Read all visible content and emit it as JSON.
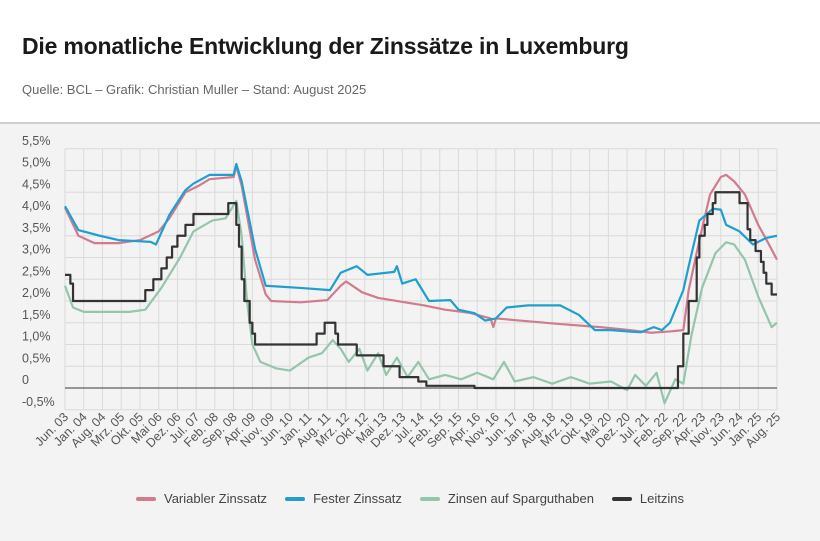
{
  "header": {
    "title": "Die monatliche Entwicklung der Zinssätze in Luxemburg",
    "subtitle": "Quelle: BCL – Grafik: Christian Muller – Stand: August 2025"
  },
  "chart_data": {
    "type": "line",
    "title": "Die monatliche Entwicklung der Zinssätze in Luxemburg",
    "xlabel": "",
    "ylabel": "",
    "ylim": [
      -0.5,
      5.5
    ],
    "xlim": [
      "2003-06",
      "2025-08"
    ],
    "grid": true,
    "legend_position": "bottom",
    "y_ticks": [
      {
        "value": 5.5,
        "label": "5,5%"
      },
      {
        "value": 5.0,
        "label": "5,0%"
      },
      {
        "value": 4.5,
        "label": "4,5%"
      },
      {
        "value": 4.0,
        "label": "4,0%"
      },
      {
        "value": 3.5,
        "label": "3,5%"
      },
      {
        "value": 3.0,
        "label": "3,0%"
      },
      {
        "value": 2.5,
        "label": "2,5%"
      },
      {
        "value": 2.0,
        "label": "2,0%"
      },
      {
        "value": 1.5,
        "label": "1,5%"
      },
      {
        "value": 1.0,
        "label": "1,0%"
      },
      {
        "value": 0.5,
        "label": "0,5%"
      },
      {
        "value": 0,
        "label": "0"
      },
      {
        "value": -0.5,
        "label": "-0,5%"
      }
    ],
    "x_ticks": [
      "Jun. 03",
      "Jan. 04",
      "Aug. 04",
      "Mrz. 05",
      "Okt. 05",
      "Mai 06",
      "Dez. 06",
      "Jul. 07",
      "Feb. 08",
      "Sep. 08",
      "Apr. 09",
      "Nov. 09",
      "Jun. 10",
      "Jan. 11",
      "Aug. 11",
      "Mrz. 12",
      "Okt. 12",
      "Mai 13",
      "Dez. 13",
      "Jul. 14",
      "Feb. 15",
      "Sep. 15",
      "Apr. 16",
      "Nov. 16",
      "Jun. 17",
      "Jan. 18",
      "Aug. 18",
      "Mrz. 19",
      "Okt. 19",
      "Mai 20",
      "Dez. 20",
      "Jul. 21",
      "Feb. 22",
      "Sep. 22",
      "Apr. 23",
      "Nov. 23",
      "Jun. 24",
      "Jan. 25",
      "Aug. 25"
    ],
    "series": [
      {
        "name": "Variabler Zinssatz",
        "color": "#d27b8f",
        "step": false,
        "points": [
          [
            "2003-06",
            4.15
          ],
          [
            "2003-11",
            3.5
          ],
          [
            "2004-05",
            3.33
          ],
          [
            "2005-02",
            3.33
          ],
          [
            "2005-10",
            3.4
          ],
          [
            "2006-05",
            3.6
          ],
          [
            "2006-09",
            3.9
          ],
          [
            "2007-03",
            4.5
          ],
          [
            "2007-08",
            4.65
          ],
          [
            "2007-12",
            4.8
          ],
          [
            "2008-09",
            4.85
          ],
          [
            "2008-10",
            5.1
          ],
          [
            "2008-12",
            4.65
          ],
          [
            "2009-05",
            2.95
          ],
          [
            "2009-09",
            2.15
          ],
          [
            "2009-11",
            2.0
          ],
          [
            "2010-10",
            1.97
          ],
          [
            "2011-08",
            2.02
          ],
          [
            "2012-01",
            2.35
          ],
          [
            "2012-03",
            2.45
          ],
          [
            "2012-09",
            2.2
          ],
          [
            "2013-03",
            2.07
          ],
          [
            "2014-01",
            1.97
          ],
          [
            "2014-08",
            1.9
          ],
          [
            "2015-04",
            1.8
          ],
          [
            "2016-01",
            1.73
          ],
          [
            "2016-09",
            1.6
          ],
          [
            "2016-10",
            1.4
          ],
          [
            "2016-11",
            1.6
          ],
          [
            "2017-08",
            1.55
          ],
          [
            "2018-11",
            1.47
          ],
          [
            "2020-02",
            1.4
          ],
          [
            "2021-01",
            1.33
          ],
          [
            "2021-09",
            1.27
          ],
          [
            "2022-04",
            1.3
          ],
          [
            "2022-09",
            1.33
          ],
          [
            "2022-11",
            2.25
          ],
          [
            "2023-03",
            3.4
          ],
          [
            "2023-07",
            4.45
          ],
          [
            "2023-11",
            4.85
          ],
          [
            "2024-01",
            4.9
          ],
          [
            "2024-04",
            4.75
          ],
          [
            "2024-08",
            4.45
          ],
          [
            "2025-01",
            3.75
          ],
          [
            "2025-05",
            3.3
          ],
          [
            "2025-08",
            2.95
          ]
        ]
      },
      {
        "name": "Fester Zinssatz",
        "color": "#1f9fd0",
        "step": false,
        "points": [
          [
            "2003-06",
            4.18
          ],
          [
            "2003-11",
            3.63
          ],
          [
            "2004-07",
            3.5
          ],
          [
            "2005-02",
            3.4
          ],
          [
            "2006-02",
            3.36
          ],
          [
            "2006-04",
            3.3
          ],
          [
            "2006-09",
            3.98
          ],
          [
            "2007-03",
            4.55
          ],
          [
            "2007-06",
            4.7
          ],
          [
            "2007-12",
            4.9
          ],
          [
            "2008-09",
            4.9
          ],
          [
            "2008-10",
            5.15
          ],
          [
            "2008-12",
            4.75
          ],
          [
            "2009-05",
            3.2
          ],
          [
            "2009-09",
            2.35
          ],
          [
            "2010-10",
            2.3
          ],
          [
            "2011-09",
            2.25
          ],
          [
            "2012-01",
            2.65
          ],
          [
            "2012-07",
            2.8
          ],
          [
            "2012-11",
            2.6
          ],
          [
            "2013-09",
            2.67
          ],
          [
            "2013-10",
            2.8
          ],
          [
            "2013-12",
            2.4
          ],
          [
            "2014-05",
            2.5
          ],
          [
            "2014-10",
            2.0
          ],
          [
            "2015-06",
            2.02
          ],
          [
            "2015-09",
            1.8
          ],
          [
            "2016-03",
            1.72
          ],
          [
            "2016-07",
            1.55
          ],
          [
            "2016-11",
            1.6
          ],
          [
            "2017-03",
            1.85
          ],
          [
            "2017-11",
            1.9
          ],
          [
            "2018-11",
            1.9
          ],
          [
            "2019-06",
            1.68
          ],
          [
            "2019-12",
            1.33
          ],
          [
            "2020-06",
            1.33
          ],
          [
            "2021-05",
            1.28
          ],
          [
            "2021-10",
            1.4
          ],
          [
            "2022-01",
            1.33
          ],
          [
            "2022-04",
            1.5
          ],
          [
            "2022-09",
            2.25
          ],
          [
            "2022-11",
            2.8
          ],
          [
            "2023-03",
            3.85
          ],
          [
            "2023-08",
            4.12
          ],
          [
            "2023-11",
            4.1
          ],
          [
            "2024-01",
            3.75
          ],
          [
            "2024-06",
            3.6
          ],
          [
            "2024-11",
            3.3
          ],
          [
            "2025-04",
            3.45
          ],
          [
            "2025-08",
            3.5
          ]
        ]
      },
      {
        "name": "Zinsen auf Sparguthaben",
        "color": "#93c6aa",
        "step": false,
        "points": [
          [
            "2003-06",
            2.35
          ],
          [
            "2003-09",
            1.85
          ],
          [
            "2004-01",
            1.75
          ],
          [
            "2005-06",
            1.75
          ],
          [
            "2005-12",
            1.8
          ],
          [
            "2006-06",
            2.3
          ],
          [
            "2007-01",
            3.0
          ],
          [
            "2007-06",
            3.6
          ],
          [
            "2008-01",
            3.85
          ],
          [
            "2008-06",
            3.9
          ],
          [
            "2008-10",
            4.3
          ],
          [
            "2008-12",
            3.5
          ],
          [
            "2009-02",
            2.0
          ],
          [
            "2009-04",
            1.0
          ],
          [
            "2009-07",
            0.6
          ],
          [
            "2010-01",
            0.45
          ],
          [
            "2010-06",
            0.4
          ],
          [
            "2011-01",
            0.7
          ],
          [
            "2011-06",
            0.8
          ],
          [
            "2011-10",
            1.1
          ],
          [
            "2012-01",
            0.9
          ],
          [
            "2012-04",
            0.6
          ],
          [
            "2012-08",
            0.9
          ],
          [
            "2012-11",
            0.4
          ],
          [
            "2013-03",
            0.8
          ],
          [
            "2013-06",
            0.3
          ],
          [
            "2013-10",
            0.7
          ],
          [
            "2014-02",
            0.25
          ],
          [
            "2014-06",
            0.6
          ],
          [
            "2014-10",
            0.2
          ],
          [
            "2015-04",
            0.3
          ],
          [
            "2015-10",
            0.2
          ],
          [
            "2016-04",
            0.35
          ],
          [
            "2016-10",
            0.2
          ],
          [
            "2017-02",
            0.6
          ],
          [
            "2017-06",
            0.15
          ],
          [
            "2018-01",
            0.25
          ],
          [
            "2018-08",
            0.1
          ],
          [
            "2019-03",
            0.25
          ],
          [
            "2019-10",
            0.1
          ],
          [
            "2020-06",
            0.15
          ],
          [
            "2020-12",
            -0.05
          ],
          [
            "2021-03",
            0.3
          ],
          [
            "2021-07",
            0.05
          ],
          [
            "2021-11",
            0.35
          ],
          [
            "2022-02",
            -0.35
          ],
          [
            "2022-06",
            0.2
          ],
          [
            "2022-09",
            0.1
          ],
          [
            "2022-12",
            1.2
          ],
          [
            "2023-04",
            2.3
          ],
          [
            "2023-09",
            3.1
          ],
          [
            "2024-01",
            3.35
          ],
          [
            "2024-04",
            3.3
          ],
          [
            "2024-08",
            2.95
          ],
          [
            "2025-01",
            2.1
          ],
          [
            "2025-06",
            1.4
          ],
          [
            "2025-08",
            1.5
          ]
        ]
      },
      {
        "name": "Leitzins",
        "color": "#333333",
        "step": true,
        "points": [
          [
            "2003-06",
            2.6
          ],
          [
            "2003-08",
            2.4
          ],
          [
            "2003-09",
            2.0
          ],
          [
            "2005-12",
            2.25
          ],
          [
            "2006-03",
            2.5
          ],
          [
            "2006-06",
            2.75
          ],
          [
            "2006-08",
            3.0
          ],
          [
            "2006-10",
            3.25
          ],
          [
            "2006-12",
            3.5
          ],
          [
            "2007-03",
            3.75
          ],
          [
            "2007-06",
            4.0
          ],
          [
            "2008-07",
            4.25
          ],
          [
            "2008-10",
            3.75
          ],
          [
            "2008-11",
            3.25
          ],
          [
            "2008-12",
            2.5
          ],
          [
            "2009-01",
            2.0
          ],
          [
            "2009-03",
            1.5
          ],
          [
            "2009-04",
            1.25
          ],
          [
            "2009-05",
            1.0
          ],
          [
            "2011-04",
            1.25
          ],
          [
            "2011-07",
            1.5
          ],
          [
            "2011-11",
            1.25
          ],
          [
            "2011-12",
            1.0
          ],
          [
            "2012-07",
            0.75
          ],
          [
            "2013-05",
            0.5
          ],
          [
            "2013-11",
            0.25
          ],
          [
            "2014-06",
            0.15
          ],
          [
            "2014-09",
            0.05
          ],
          [
            "2016-03",
            0.0
          ],
          [
            "2022-07",
            0.5
          ],
          [
            "2022-09",
            1.25
          ],
          [
            "2022-11",
            2.0
          ],
          [
            "2023-02",
            3.0
          ],
          [
            "2023-03",
            3.5
          ],
          [
            "2023-05",
            3.75
          ],
          [
            "2023-06",
            4.0
          ],
          [
            "2023-08",
            4.25
          ],
          [
            "2023-09",
            4.5
          ],
          [
            "2024-06",
            4.25
          ],
          [
            "2024-09",
            3.65
          ],
          [
            "2024-10",
            3.4
          ],
          [
            "2024-12",
            3.15
          ],
          [
            "2025-02",
            2.9
          ],
          [
            "2025-03",
            2.65
          ],
          [
            "2025-04",
            2.4
          ],
          [
            "2025-06",
            2.15
          ],
          [
            "2025-08",
            2.15
          ]
        ]
      }
    ]
  },
  "legend": [
    {
      "label": "Variabler Zinssatz",
      "color": "#d27b8f"
    },
    {
      "label": "Fester Zinssatz",
      "color": "#1f9fd0"
    },
    {
      "label": "Zinsen auf Sparguthaben",
      "color": "#93c6aa"
    },
    {
      "label": "Leitzins",
      "color": "#333333"
    }
  ]
}
